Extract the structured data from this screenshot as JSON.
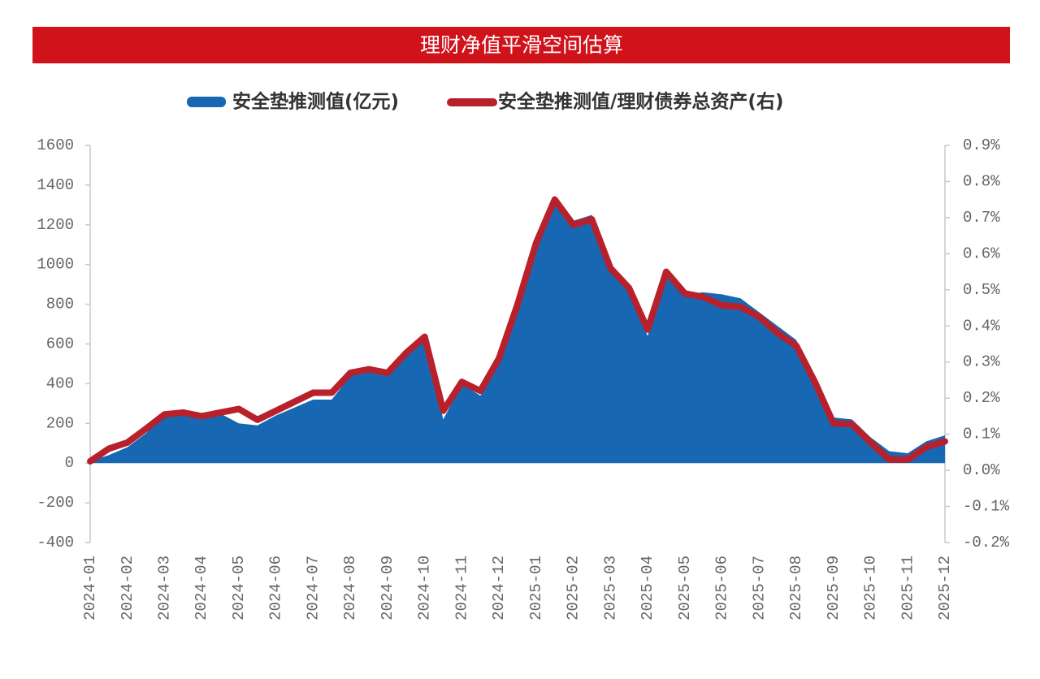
{
  "chart_data": {
    "type": "area-line",
    "title": "理财净值平滑空间估算",
    "categories": [
      "2024-01",
      null,
      "2024-02",
      null,
      "2024-03",
      null,
      "2024-04",
      null,
      "2024-05",
      null,
      "2024-06",
      null,
      "2024-07",
      null,
      "2024-08",
      null,
      "2024-09",
      null,
      "2024-10",
      null,
      "2024-11",
      null,
      "2024-12",
      null,
      "2025-01",
      null,
      "2025-02",
      null,
      "2025-03",
      null,
      "2025-04",
      null,
      "2025-05",
      null,
      "2025-06",
      null,
      "2025-07",
      null,
      "2025-08",
      null,
      "2025-09",
      null,
      "2025-10",
      null,
      "2025-11",
      null,
      "2025-12"
    ],
    "series": [
      {
        "name": "安全垫推测值(亿元)",
        "color": "#1767b3",
        "axis": "y",
        "values": [
          10,
          40,
          80,
          150,
          240,
          250,
          240,
          250,
          200,
          190,
          240,
          280,
          320,
          320,
          440,
          470,
          440,
          540,
          640,
          220,
          400,
          340,
          510,
          780,
          1100,
          1330,
          1220,
          1250,
          1000,
          870,
          640,
          950,
          850,
          860,
          850,
          830,
          760,
          690,
          620,
          430,
          230,
          220,
          130,
          60,
          50,
          110,
          140
        ]
      },
      {
        "name": "安全垫推测值/理财债券总资产(右)",
        "color": "#b8202b",
        "axis": "y2",
        "values": [
          0.025,
          0.06,
          0.077,
          0.115,
          0.155,
          0.16,
          0.15,
          0.16,
          0.17,
          0.14,
          0.165,
          0.19,
          0.215,
          0.215,
          0.27,
          0.28,
          0.27,
          0.325,
          0.37,
          0.165,
          0.245,
          0.22,
          0.31,
          0.46,
          0.63,
          0.75,
          0.68,
          0.695,
          0.56,
          0.505,
          0.39,
          0.55,
          0.49,
          0.48,
          0.457,
          0.453,
          0.425,
          0.38,
          0.345,
          0.245,
          0.13,
          0.128,
          0.077,
          0.03,
          0.03,
          0.065,
          0.08
        ]
      }
    ],
    "ylim": [
      -400,
      1600
    ],
    "yticks": [
      -400,
      -200,
      0,
      200,
      400,
      600,
      800,
      1000,
      1200,
      1400,
      1600
    ],
    "y2lim": [
      -0.2,
      0.9
    ],
    "y2ticks": [
      {
        "value": -0.2,
        "label": "-0.2%"
      },
      {
        "value": -0.1,
        "label": "-0.1%"
      },
      {
        "value": 0,
        "label": "0.0%"
      },
      {
        "value": 0.1,
        "label": "0.1%"
      },
      {
        "value": 0.2,
        "label": "0.2%"
      },
      {
        "value": 0.3,
        "label": "0.3%"
      },
      {
        "value": 0.4,
        "label": "0.4%"
      },
      {
        "value": 0.5,
        "label": "0.5%"
      },
      {
        "value": 0.6,
        "label": "0.6%"
      },
      {
        "value": 0.7,
        "label": "0.7%"
      },
      {
        "value": 0.8,
        "label": "0.8%"
      },
      {
        "value": 0.9,
        "label": "0.9%"
      }
    ],
    "legend": "top"
  }
}
